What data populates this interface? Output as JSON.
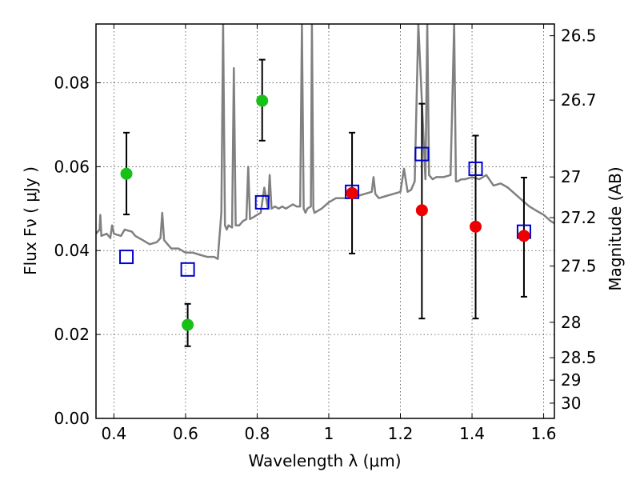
{
  "chart_data": {
    "type": "scatter",
    "xlabel": "Wavelength  λ (μm)",
    "ylabel": "Flux  Fν  ( μJy )",
    "y2label": "Magnitude (AB)",
    "xlim": [
      0.35,
      1.63
    ],
    "ylim": [
      0.0,
      0.094
    ],
    "x_ticks": [
      0.4,
      0.6,
      0.8,
      1.0,
      1.2,
      1.4,
      1.6
    ],
    "x_tick_labels": [
      "0.4",
      "0.6",
      "0.8",
      "1",
      "1.2",
      "1.4",
      "1.6"
    ],
    "y_ticks": [
      0.0,
      0.02,
      0.04,
      0.06,
      0.08
    ],
    "y_tick_labels": [
      "0.00",
      "0.02",
      "0.04",
      "0.06",
      "0.08"
    ],
    "mag_ticks": [
      26.5,
      26.7,
      27.0,
      27.2,
      27.5,
      28.0,
      28.5,
      29.0,
      30.0
    ],
    "mag_tick_labels": [
      "26.5",
      "26.7",
      "27",
      "27.2",
      "27.5",
      "28",
      "28.5",
      "29",
      "30"
    ],
    "grid": true,
    "colors": {
      "model_line": "#808080",
      "green_points": "#18c018",
      "red_points": "#ee0000",
      "model_boxes": "#0000cc",
      "error_bars": "#000000"
    },
    "series": [
      {
        "kind": "model_spectrum",
        "x": [
          0.35,
          0.36,
          0.362,
          0.365,
          0.38,
          0.39,
          0.395,
          0.4,
          0.42,
          0.43,
          0.45,
          0.46,
          0.48,
          0.5,
          0.52,
          0.53,
          0.535,
          0.54,
          0.55,
          0.56,
          0.58,
          0.6,
          0.62,
          0.64,
          0.66,
          0.68,
          0.69,
          0.7,
          0.705,
          0.71,
          0.715,
          0.72,
          0.73,
          0.735,
          0.74,
          0.75,
          0.76,
          0.77,
          0.775,
          0.78,
          0.79,
          0.8,
          0.81,
          0.82,
          0.83,
          0.835,
          0.84,
          0.85,
          0.86,
          0.87,
          0.88,
          0.89,
          0.9,
          0.91,
          0.92,
          0.925,
          0.93,
          0.935,
          0.94,
          0.95,
          0.953,
          0.957,
          0.96,
          0.97,
          0.98,
          1.0,
          1.02,
          1.04,
          1.06,
          1.08,
          1.1,
          1.12,
          1.125,
          1.13,
          1.14,
          1.16,
          1.18,
          1.2,
          1.21,
          1.22,
          1.23,
          1.24,
          1.25,
          1.27,
          1.275,
          1.28,
          1.29,
          1.3,
          1.32,
          1.34,
          1.35,
          1.355,
          1.36,
          1.37,
          1.38,
          1.4,
          1.42,
          1.44,
          1.46,
          1.48,
          1.5,
          1.52,
          1.54,
          1.56,
          1.58,
          1.6,
          1.62,
          1.63
        ],
        "y": [
          0.044,
          0.045,
          0.0485,
          0.0435,
          0.044,
          0.043,
          0.046,
          0.044,
          0.0435,
          0.045,
          0.0445,
          0.0435,
          0.0425,
          0.0415,
          0.042,
          0.043,
          0.049,
          0.0425,
          0.0415,
          0.0405,
          0.0405,
          0.0395,
          0.0395,
          0.039,
          0.0385,
          0.0385,
          0.038,
          0.049,
          0.094,
          0.046,
          0.045,
          0.046,
          0.0455,
          0.0835,
          0.046,
          0.046,
          0.047,
          0.0475,
          0.06,
          0.0475,
          0.048,
          0.0485,
          0.049,
          0.055,
          0.05,
          0.058,
          0.05,
          0.0505,
          0.05,
          0.0505,
          0.05,
          0.0505,
          0.051,
          0.0505,
          0.0505,
          0.094,
          0.05,
          0.049,
          0.05,
          0.0505,
          0.094,
          0.05,
          0.049,
          0.0495,
          0.05,
          0.0515,
          0.0525,
          0.0525,
          0.0525,
          0.053,
          0.0535,
          0.054,
          0.0575,
          0.0535,
          0.0525,
          0.053,
          0.0535,
          0.054,
          0.0595,
          0.054,
          0.0545,
          0.0565,
          0.094,
          0.057,
          0.094,
          0.058,
          0.057,
          0.0575,
          0.0575,
          0.058,
          0.094,
          0.0565,
          0.0565,
          0.057,
          0.057,
          0.0575,
          0.057,
          0.058,
          0.0555,
          0.056,
          0.055,
          0.0535,
          0.052,
          0.0505,
          0.0495,
          0.0485,
          0.047,
          0.0465
        ]
      },
      {
        "kind": "observed_points_green",
        "points": [
          {
            "x": 0.435,
            "y": 0.0583,
            "yerr_low": 0.0486,
            "yerr_high": 0.0681
          },
          {
            "x": 0.606,
            "y": 0.0223,
            "yerr_low": 0.0172,
            "yerr_high": 0.0273
          },
          {
            "x": 0.814,
            "y": 0.0757,
            "yerr_low": 0.0662,
            "yerr_high": 0.0855
          }
        ]
      },
      {
        "kind": "observed_points_red",
        "points": [
          {
            "x": 1.065,
            "y": 0.0537,
            "yerr_low": 0.0393,
            "yerr_high": 0.0681
          },
          {
            "x": 1.26,
            "y": 0.0496,
            "yerr_low": 0.0238,
            "yerr_high": 0.075
          },
          {
            "x": 1.41,
            "y": 0.0457,
            "yerr_low": 0.0238,
            "yerr_high": 0.0674
          },
          {
            "x": 1.545,
            "y": 0.0435,
            "yerr_low": 0.029,
            "yerr_high": 0.0574
          }
        ]
      },
      {
        "kind": "model_boxes",
        "points": [
          {
            "x": 0.435,
            "y": 0.0385
          },
          {
            "x": 0.606,
            "y": 0.0355
          },
          {
            "x": 0.814,
            "y": 0.0515
          },
          {
            "x": 1.065,
            "y": 0.054
          },
          {
            "x": 1.26,
            "y": 0.063
          },
          {
            "x": 1.41,
            "y": 0.0595
          },
          {
            "x": 1.545,
            "y": 0.0445
          }
        ]
      }
    ]
  }
}
